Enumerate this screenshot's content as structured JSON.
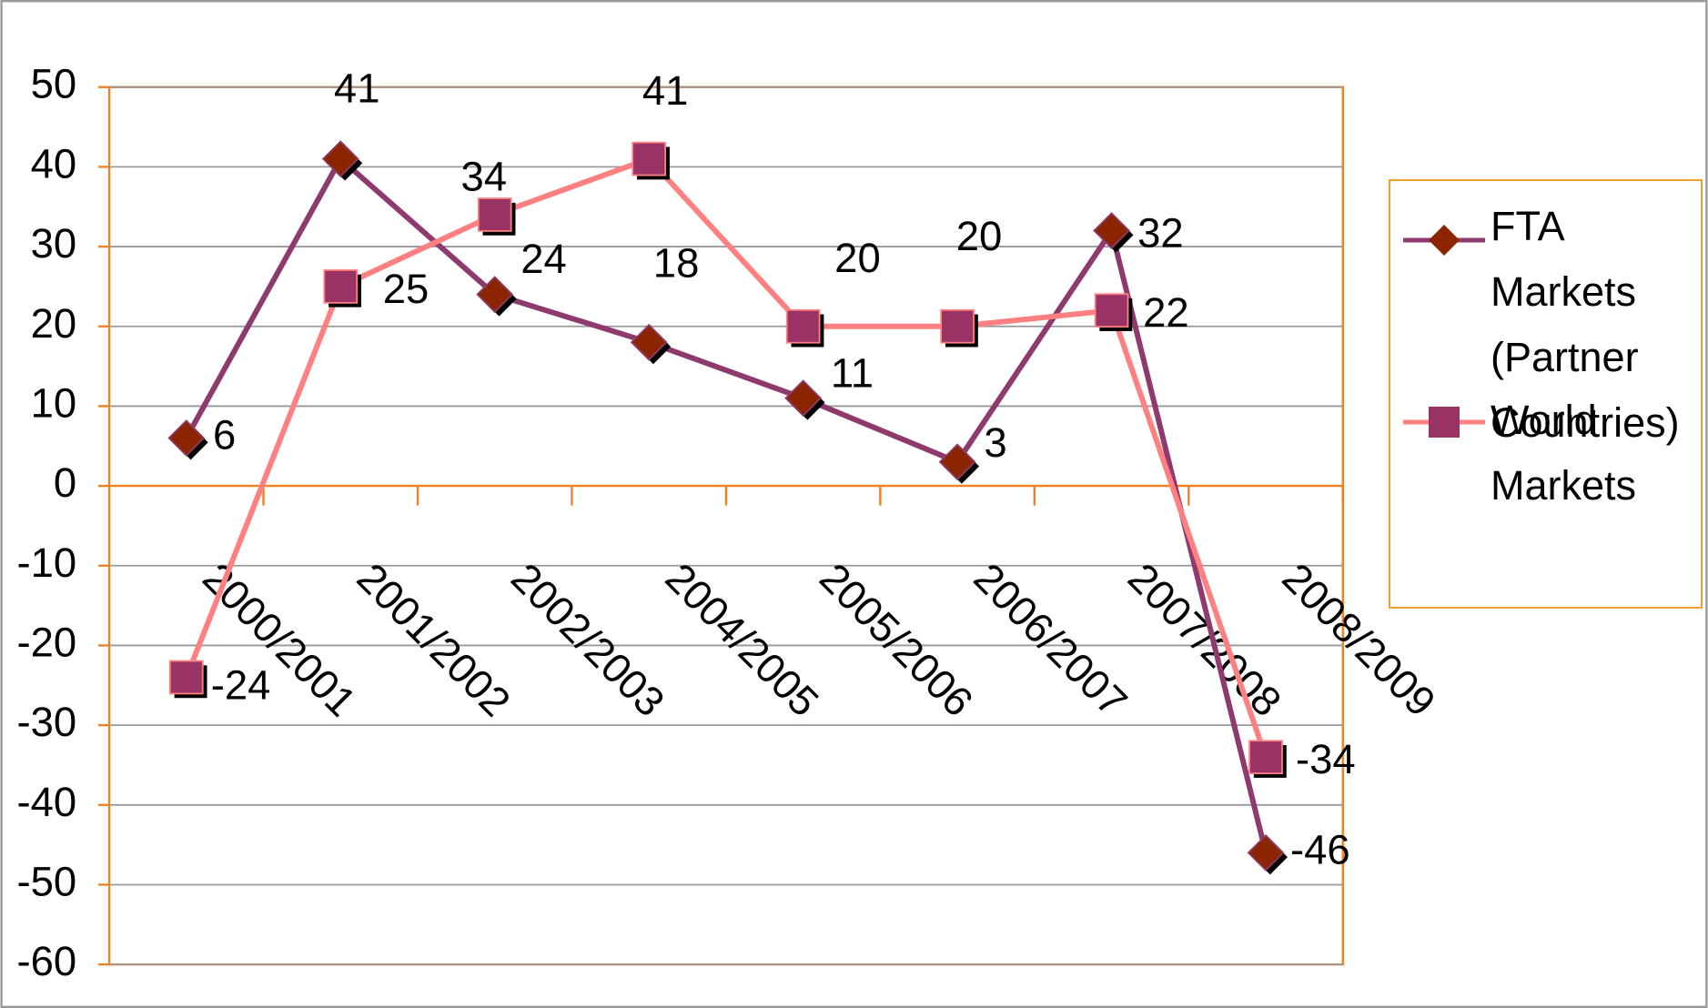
{
  "chart_data": {
    "type": "line",
    "categories": [
      "2000/2001",
      "2001/2002",
      "2002/2003",
      "2004/2005",
      "2005/2006",
      "2006/2007",
      "2007/2008",
      "2008/2009"
    ],
    "series": [
      {
        "name": "FTA Markets (Partner Countries)",
        "color": "#8e3a6e",
        "marker_color": "#8b2500",
        "marker": "diamond",
        "values": [
          6,
          41,
          24,
          18,
          11,
          3,
          32,
          -46
        ]
      },
      {
        "name": "World Markets",
        "color": "#ff8080",
        "marker_color": "#993366",
        "marker": "square",
        "values": [
          -24,
          25,
          34,
          41,
          20,
          20,
          22,
          -34
        ]
      }
    ],
    "ylim": [
      -60,
      50
    ],
    "yticks": [
      -60,
      -50,
      -40,
      -30,
      -20,
      -10,
      0,
      10,
      20,
      30,
      40,
      50
    ],
    "grid": true,
    "legend": "right"
  }
}
